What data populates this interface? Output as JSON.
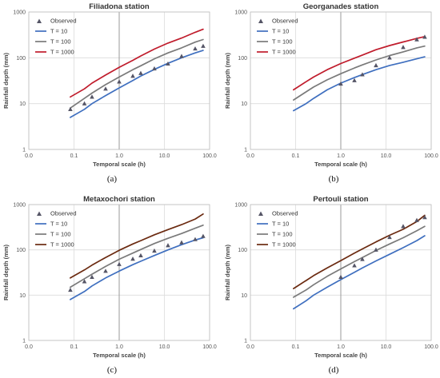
{
  "chart_data": [
    {
      "type": "line",
      "title": "Filiadona station",
      "caption": "(a)",
      "xlabel": "Temporal scale (h)",
      "ylabel": "Rainfall depth (mm)",
      "x_scale": "log",
      "y_scale": "log",
      "xlim": [
        0.01,
        100
      ],
      "ylim": [
        1,
        1000
      ],
      "x_ticks": [
        "0.0",
        "0.1",
        "1.0",
        "10.0",
        "100.0"
      ],
      "y_ticks": [
        "1",
        "10",
        "100",
        "1000"
      ],
      "legend_position": "top-left",
      "series": [
        {
          "name": "Observed",
          "kind": "marker",
          "color": "#555566",
          "x": [
            0.083,
            0.17,
            0.25,
            0.5,
            1,
            2,
            3,
            6,
            12,
            24,
            48,
            72
          ],
          "y": [
            7.5,
            10,
            14,
            21,
            30,
            40,
            46,
            58,
            74,
            108,
            158,
            180
          ]
        },
        {
          "name": "T = 10",
          "kind": "line",
          "color": "#3f6fbf",
          "x": [
            0.083,
            0.17,
            0.25,
            0.5,
            1,
            2,
            3,
            6,
            12,
            24,
            48,
            72
          ],
          "y": [
            5,
            7.5,
            10,
            15,
            22,
            32,
            40,
            56,
            76,
            100,
            128,
            145
          ]
        },
        {
          "name": "T = 100",
          "kind": "line",
          "color": "#7a7a7a",
          "x": [
            0.083,
            0.17,
            0.25,
            0.5,
            1,
            2,
            3,
            6,
            12,
            24,
            48,
            72
          ],
          "y": [
            8,
            13,
            17,
            26,
            38,
            55,
            67,
            95,
            128,
            165,
            220,
            250
          ]
        },
        {
          "name": "T = 1000",
          "kind": "line",
          "color": "#c01c2c",
          "x": [
            0.083,
            0.17,
            0.25,
            0.5,
            1,
            2,
            3,
            6,
            12,
            24,
            48,
            72
          ],
          "y": [
            14,
            21,
            28,
            42,
            62,
            88,
            110,
            155,
            210,
            270,
            360,
            420
          ]
        }
      ]
    },
    {
      "type": "line",
      "title": "Georganades station",
      "caption": "(b)",
      "xlabel": "Temporal scale (h)",
      "ylabel": "Rainfall depth (mm)",
      "x_scale": "log",
      "y_scale": "log",
      "xlim": [
        0.01,
        100
      ],
      "ylim": [
        1,
        1000
      ],
      "x_ticks": [
        "0.0",
        "0.1",
        "1.0",
        "10.0",
        "100.0"
      ],
      "y_ticks": [
        "1",
        "10",
        "100",
        "1000"
      ],
      "legend_position": "top-left",
      "series": [
        {
          "name": "Observed",
          "kind": "marker",
          "color": "#555566",
          "x": [
            1,
            2,
            3,
            6,
            12,
            24,
            48,
            72
          ],
          "y": [
            27,
            32,
            43,
            68,
            100,
            170,
            250,
            285
          ]
        },
        {
          "name": "T = 10",
          "kind": "line",
          "color": "#3f6fbf",
          "x": [
            0.09,
            0.17,
            0.25,
            0.5,
            1,
            2,
            3,
            6,
            12,
            24,
            48,
            72
          ],
          "y": [
            7,
            10,
            13,
            20,
            28,
            37,
            43,
            55,
            68,
            80,
            95,
            105
          ]
        },
        {
          "name": "T = 100",
          "kind": "line",
          "color": "#7a7a7a",
          "x": [
            0.09,
            0.17,
            0.25,
            0.5,
            1,
            2,
            3,
            6,
            12,
            24,
            48,
            72
          ],
          "y": [
            12,
            18,
            23,
            33,
            45,
            60,
            70,
            90,
            112,
            135,
            165,
            180
          ]
        },
        {
          "name": "T = 1000",
          "kind": "line",
          "color": "#c01c2c",
          "x": [
            0.09,
            0.17,
            0.25,
            0.5,
            1,
            2,
            3,
            6,
            12,
            24,
            48,
            72
          ],
          "y": [
            20,
            30,
            38,
            55,
            75,
            98,
            115,
            150,
            185,
            222,
            265,
            290
          ]
        }
      ]
    },
    {
      "type": "line",
      "title": "Metaxochori station",
      "caption": "(c)",
      "xlabel": "Temporal scale (h)",
      "ylabel": "Rainfall depth (mm)",
      "x_scale": "log",
      "y_scale": "log",
      "xlim": [
        0.01,
        100
      ],
      "ylim": [
        1,
        1000
      ],
      "x_ticks": [
        "0.0",
        "0.1",
        "1.0",
        "10.0",
        "100.0"
      ],
      "y_ticks": [
        "1",
        "10",
        "100",
        "1000"
      ],
      "legend_position": "top-left",
      "series": [
        {
          "name": "Observed",
          "kind": "marker",
          "color": "#555566",
          "x": [
            0.083,
            0.17,
            0.25,
            0.5,
            1,
            2,
            3,
            6,
            12,
            24,
            48,
            72
          ],
          "y": [
            13,
            20,
            25,
            34,
            48,
            63,
            75,
            95,
            125,
            145,
            170,
            200
          ]
        },
        {
          "name": "T = 10",
          "kind": "line",
          "color": "#3f6fbf",
          "x": [
            0.083,
            0.17,
            0.25,
            0.5,
            1,
            2,
            3,
            6,
            12,
            24,
            48,
            72
          ],
          "y": [
            8,
            12,
            16,
            24,
            34,
            47,
            56,
            75,
            100,
            130,
            165,
            185
          ]
        },
        {
          "name": "T = 100",
          "kind": "line",
          "color": "#7a7a7a",
          "x": [
            0.083,
            0.17,
            0.25,
            0.5,
            1,
            2,
            3,
            6,
            12,
            24,
            48,
            72
          ],
          "y": [
            15,
            23,
            29,
            43,
            62,
            85,
            102,
            138,
            180,
            230,
            300,
            350
          ]
        },
        {
          "name": "T = 1000",
          "kind": "line",
          "color": "#6b2a10",
          "x": [
            0.083,
            0.17,
            0.25,
            0.5,
            1,
            2,
            3,
            6,
            12,
            24,
            48,
            72
          ],
          "y": [
            24,
            36,
            46,
            68,
            98,
            135,
            160,
            215,
            280,
            360,
            480,
            620
          ]
        }
      ]
    },
    {
      "type": "line",
      "title": "Pertouli station",
      "caption": "(d)",
      "xlabel": "Temporal scale (h)",
      "ylabel": "Rainfall depth (mm)",
      "x_scale": "log",
      "y_scale": "log",
      "xlim": [
        0.01,
        100
      ],
      "ylim": [
        1,
        1000
      ],
      "x_ticks": [
        "0.0",
        "0.1",
        "1.0",
        "10.0",
        "100.0"
      ],
      "y_ticks": [
        "1",
        "10",
        "100",
        "1000"
      ],
      "legend_position": "top-left",
      "series": [
        {
          "name": "Observed",
          "kind": "marker",
          "color": "#555566",
          "x": [
            1,
            2,
            3,
            6,
            12,
            24,
            48,
            72
          ],
          "y": [
            25,
            45,
            62,
            100,
            190,
            330,
            450,
            520
          ]
        },
        {
          "name": "T = 10",
          "kind": "line",
          "color": "#3f6fbf",
          "x": [
            0.09,
            0.17,
            0.25,
            0.5,
            1,
            2,
            3,
            6,
            12,
            24,
            48,
            72
          ],
          "y": [
            5,
            7.5,
            10,
            15,
            22,
            32,
            40,
            57,
            80,
            112,
            160,
            205
          ]
        },
        {
          "name": "T = 100",
          "kind": "line",
          "color": "#7a7a7a",
          "x": [
            0.09,
            0.17,
            0.25,
            0.5,
            1,
            2,
            3,
            6,
            12,
            24,
            48,
            72
          ],
          "y": [
            9,
            13,
            17,
            26,
            38,
            55,
            68,
            97,
            135,
            185,
            265,
            330
          ]
        },
        {
          "name": "T = 1000",
          "kind": "line",
          "color": "#6b2a10",
          "x": [
            0.09,
            0.17,
            0.25,
            0.5,
            1,
            2,
            3,
            6,
            12,
            24,
            48,
            72
          ],
          "y": [
            14,
            21,
            27,
            40,
            58,
            85,
            105,
            150,
            210,
            285,
            420,
            580
          ]
        }
      ]
    }
  ]
}
